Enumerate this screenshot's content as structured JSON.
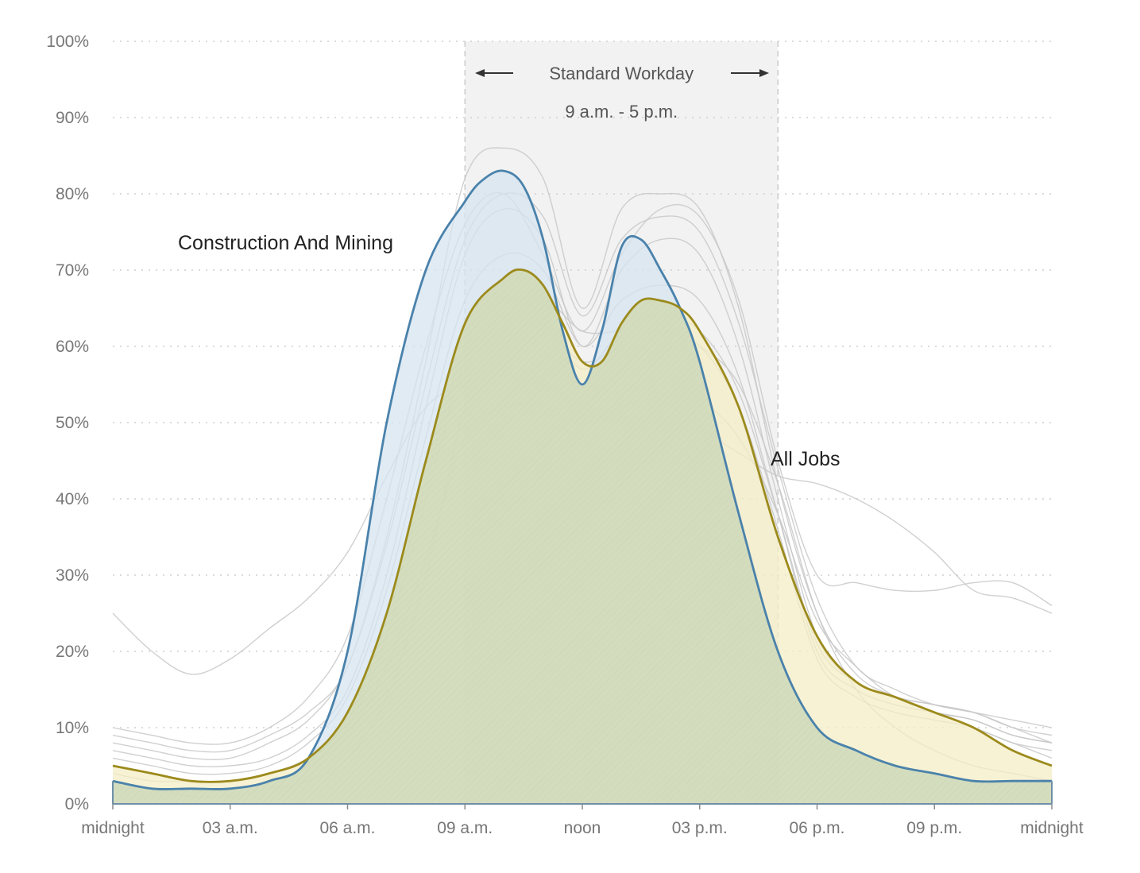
{
  "chart_data": {
    "type": "area",
    "title": "",
    "xlabel": "",
    "ylabel": "",
    "xlim": [
      0,
      24
    ],
    "ylim": [
      0,
      100
    ],
    "grid": true,
    "x_ticks": [
      {
        "x": 0,
        "label": "midnight"
      },
      {
        "x": 3,
        "label": "03 a.m."
      },
      {
        "x": 6,
        "label": "06 a.m."
      },
      {
        "x": 9,
        "label": "09 a.m."
      },
      {
        "x": 12,
        "label": "noon"
      },
      {
        "x": 15,
        "label": "03 p.m."
      },
      {
        "x": 18,
        "label": "06 p.m."
      },
      {
        "x": 21,
        "label": "09 p.m."
      },
      {
        "x": 24,
        "label": "midnight"
      }
    ],
    "y_ticks": [
      {
        "y": 0,
        "label": "0%"
      },
      {
        "y": 10,
        "label": "10%"
      },
      {
        "y": 20,
        "label": "20%"
      },
      {
        "y": 30,
        "label": "30%"
      },
      {
        "y": 40,
        "label": "40%"
      },
      {
        "y": 50,
        "label": "50%"
      },
      {
        "y": 60,
        "label": "60%"
      },
      {
        "y": 70,
        "label": "70%"
      },
      {
        "y": 80,
        "label": "80%"
      },
      {
        "y": 90,
        "label": "90%"
      },
      {
        "y": 100,
        "label": "100%"
      }
    ],
    "annotation_band": {
      "x_start": 9,
      "x_end": 17,
      "label": "Standard Workday",
      "sublabel": "9 a.m. - 5 p.m.",
      "fill": "#f2f2f2",
      "border": "#cccccc"
    },
    "highlight_series": [
      {
        "name": "All Jobs",
        "label_text": "All Jobs",
        "line_color": "#9c8a1c",
        "fill_color": "#f4edc6",
        "x": [
          0,
          1,
          2,
          3,
          4,
          5,
          6,
          7,
          8,
          9,
          10,
          10.5,
          11,
          11.5,
          12,
          12.5,
          13,
          13.5,
          14,
          14.5,
          15,
          16,
          17,
          18,
          19,
          20,
          21,
          22,
          23,
          24
        ],
        "y": [
          5,
          4,
          3,
          3,
          4,
          6,
          12,
          25,
          45,
          63,
          69,
          70,
          68,
          63,
          58,
          58,
          63,
          66,
          66,
          65,
          62,
          52,
          35,
          22,
          16,
          14,
          12,
          10,
          7,
          5
        ]
      },
      {
        "name": "Construction And Mining",
        "label_text": "Construction And Mining",
        "line_color": "#4a82ab",
        "fill_color": "#d6e4f0",
        "x": [
          0,
          1,
          2,
          3,
          4,
          5,
          6,
          7,
          8,
          9,
          9.5,
          10,
          10.5,
          11,
          11.5,
          12,
          12.5,
          13,
          13.5,
          14,
          14.5,
          15,
          16,
          17,
          18,
          19,
          20,
          21,
          22,
          23,
          24
        ],
        "y": [
          3,
          2,
          2,
          2,
          3,
          6,
          20,
          50,
          70,
          79,
          82,
          83,
          81,
          74,
          62,
          55,
          62,
          73,
          74,
          70,
          65,
          58,
          38,
          20,
          10,
          7,
          5,
          4,
          3,
          3,
          3
        ]
      }
    ],
    "background_series": [
      {
        "x": [
          0,
          1,
          2,
          3,
          4,
          5,
          6,
          7,
          8,
          9,
          10,
          11,
          12,
          13,
          14,
          15,
          16,
          17,
          18,
          19,
          20,
          21,
          22,
          23,
          24
        ],
        "y": [
          25,
          20,
          17,
          19,
          23,
          27,
          33,
          43,
          52,
          55,
          56,
          55,
          52,
          50,
          50,
          49,
          46,
          43,
          42,
          40,
          37,
          33,
          28,
          27,
          25
        ]
      },
      {
        "x": [
          0,
          1,
          2,
          3,
          4,
          5,
          6,
          7,
          8,
          9,
          10,
          11,
          12,
          13,
          14,
          15,
          16,
          17,
          18,
          19,
          20,
          21,
          22,
          23,
          24
        ],
        "y": [
          10,
          9,
          8,
          8,
          10,
          14,
          22,
          40,
          60,
          76,
          80,
          72,
          62,
          72,
          78,
          77,
          66,
          45,
          30,
          29,
          28,
          28,
          29,
          29,
          26
        ]
      },
      {
        "x": [
          0,
          1,
          2,
          3,
          4,
          5,
          6,
          7,
          8,
          9,
          10,
          11,
          12,
          13,
          14,
          15,
          16,
          17,
          18,
          19,
          20,
          21,
          22,
          23,
          24
        ],
        "y": [
          9,
          8,
          7,
          7,
          9,
          12,
          18,
          35,
          58,
          82,
          86,
          82,
          65,
          78,
          80,
          78,
          65,
          42,
          25,
          17,
          14,
          12,
          11,
          9,
          8
        ]
      },
      {
        "x": [
          0,
          1,
          2,
          3,
          4,
          5,
          6,
          7,
          8,
          9,
          10,
          11,
          12,
          13,
          14,
          15,
          16,
          17,
          18,
          19,
          20,
          21,
          22,
          23,
          24
        ],
        "y": [
          7,
          6,
          5,
          5,
          6,
          9,
          15,
          30,
          52,
          72,
          78,
          74,
          60,
          70,
          74,
          72,
          60,
          40,
          22,
          16,
          14,
          13,
          12,
          10,
          9
        ]
      },
      {
        "x": [
          0,
          1,
          2,
          3,
          4,
          5,
          6,
          7,
          8,
          9,
          10,
          11,
          12,
          13,
          14,
          15,
          16,
          17,
          18,
          19,
          20,
          21,
          22,
          23,
          24
        ],
        "y": [
          6,
          5,
          4,
          4,
          5,
          8,
          14,
          28,
          48,
          66,
          72,
          70,
          60,
          66,
          68,
          66,
          56,
          38,
          20,
          15,
          13,
          12,
          11,
          9,
          8
        ]
      },
      {
        "x": [
          0,
          1,
          2,
          3,
          4,
          5,
          6,
          7,
          8,
          9,
          10,
          11,
          12,
          13,
          14,
          15,
          16,
          17,
          18,
          19,
          20,
          21,
          22,
          23,
          24
        ],
        "y": [
          4,
          3,
          3,
          3,
          4,
          6,
          10,
          22,
          40,
          58,
          64,
          63,
          58,
          60,
          62,
          60,
          52,
          36,
          19,
          14,
          12,
          11,
          10,
          8,
          7
        ]
      },
      {
        "x": [
          0,
          1,
          2,
          3,
          4,
          5,
          6,
          7,
          8,
          9,
          10,
          11,
          12,
          13,
          14,
          15,
          16,
          17,
          18,
          19,
          20,
          21,
          22,
          23,
          24
        ],
        "y": [
          3,
          2,
          2,
          2,
          3,
          5,
          9,
          18,
          32,
          48,
          52,
          52,
          50,
          52,
          54,
          53,
          48,
          38,
          24,
          18,
          14,
          12,
          10,
          8,
          6
        ]
      },
      {
        "x": [
          0,
          1,
          2,
          3,
          4,
          5,
          6,
          7,
          8,
          9,
          10,
          11,
          12,
          13,
          14,
          15,
          16,
          17,
          18,
          19,
          20,
          21,
          22,
          23,
          24
        ],
        "y": [
          2,
          2,
          1,
          1,
          2,
          3,
          6,
          14,
          30,
          52,
          62,
          66,
          62,
          62,
          62,
          60,
          55,
          42,
          25,
          15,
          10,
          7,
          5,
          4,
          3
        ]
      },
      {
        "x": [
          0,
          1,
          2,
          3,
          4,
          5,
          6,
          7,
          8,
          9,
          10,
          11,
          12,
          13,
          14,
          15,
          16,
          17,
          18,
          19,
          20,
          21,
          22,
          23,
          24
        ],
        "y": [
          8,
          7,
          6,
          6,
          8,
          11,
          18,
          34,
          55,
          74,
          80,
          77,
          64,
          74,
          77,
          75,
          63,
          44,
          27,
          18,
          15,
          13,
          12,
          11,
          10
        ]
      },
      {
        "x": [
          0,
          1,
          2,
          3,
          4,
          5,
          6,
          7,
          8,
          9,
          10,
          11,
          12,
          13,
          14,
          15,
          16,
          17,
          18,
          19,
          20,
          21,
          22,
          23,
          24
        ],
        "y": [
          5,
          4,
          3,
          3,
          4,
          6,
          11,
          24,
          42,
          60,
          66,
          64,
          57,
          62,
          64,
          62,
          54,
          38,
          21,
          16,
          14,
          13,
          12,
          10,
          8
        ]
      }
    ]
  }
}
